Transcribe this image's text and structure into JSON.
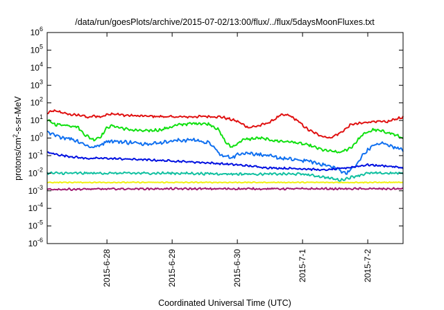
{
  "chart_data": {
    "type": "line",
    "title": "/data/run/goesPlots/archive/2015-07-02/13:00/flux/../flux/5daysMoonFluxes.txt",
    "xlabel": "Coordinated Universal Time (UTC)",
    "ylabel": {
      "base": "protons/cm",
      "sup": "2",
      "rest": "-s-sr-MeV"
    },
    "y_scale": "log",
    "ylim": [
      1e-06,
      1000000.0
    ],
    "y_ticks": [
      {
        "base": "10",
        "exp": "-6",
        "value": -6
      },
      {
        "base": "10",
        "exp": "-5",
        "value": -5
      },
      {
        "base": "10",
        "exp": "-4",
        "value": -4
      },
      {
        "base": "10",
        "exp": "-3",
        "value": -3
      },
      {
        "base": "10",
        "exp": "-2",
        "value": -2
      },
      {
        "base": "10",
        "exp": "-1",
        "value": -1
      },
      {
        "base": "10",
        "exp": "0",
        "value": 0
      },
      {
        "base": "10",
        "exp": "1",
        "value": 1
      },
      {
        "base": "10",
        "exp": "2",
        "value": 2
      },
      {
        "base": "10",
        "exp": "3",
        "value": 3
      },
      {
        "base": "10",
        "exp": "4",
        "value": 4
      },
      {
        "base": "10",
        "exp": "5",
        "value": 5
      },
      {
        "base": "10",
        "exp": "6",
        "value": 6
      }
    ],
    "xlim": [
      "2015-06-27T02:00",
      "2015-07-02T13:00"
    ],
    "x_ticks": [
      {
        "label": "2015-6-28",
        "value": "2015-06-28T00:00"
      },
      {
        "label": "2015-6-29",
        "value": "2015-06-29T00:00"
      },
      {
        "label": "2015-6-30",
        "value": "2015-06-30T00:00"
      },
      {
        "label": "2015-7-1",
        "value": "2015-07-01T00:00"
      },
      {
        "label": "2015-7-2",
        "value": "2015-07-02T00:00"
      }
    ],
    "grid": false,
    "series": [
      {
        "color": "#e01010",
        "noise": 0.05,
        "points": [
          [
            "2015-06-27T02:00",
            25
          ],
          [
            "2015-06-27T04:00",
            35
          ],
          [
            "2015-06-27T07:00",
            30
          ],
          [
            "2015-06-27T10:00",
            22
          ],
          [
            "2015-06-27T13:00",
            20
          ],
          [
            "2015-06-27T15:00",
            20
          ],
          [
            "2015-06-27T17:00",
            14
          ],
          [
            "2015-06-27T19:00",
            18
          ],
          [
            "2015-06-27T22:00",
            16
          ],
          [
            "2015-06-28T00:00",
            22
          ],
          [
            "2015-06-28T02:00",
            25
          ],
          [
            "2015-06-28T06:00",
            20
          ],
          [
            "2015-06-28T12:00",
            18
          ],
          [
            "2015-06-28T18:00",
            17
          ],
          [
            "2015-06-29T00:00",
            16
          ],
          [
            "2015-06-29T06:00",
            16
          ],
          [
            "2015-06-29T12:00",
            17
          ],
          [
            "2015-06-29T18:00",
            16
          ],
          [
            "2015-06-30T00:00",
            9
          ],
          [
            "2015-06-30T04:00",
            4
          ],
          [
            "2015-06-30T08:00",
            5
          ],
          [
            "2015-06-30T12:00",
            8
          ],
          [
            "2015-06-30T16:00",
            20
          ],
          [
            "2015-06-30T19:00",
            20
          ],
          [
            "2015-06-30T22:00",
            10
          ],
          [
            "2015-07-01T02:00",
            3
          ],
          [
            "2015-07-01T06:00",
            1.5
          ],
          [
            "2015-07-01T10:00",
            1
          ],
          [
            "2015-07-01T14:00",
            2
          ],
          [
            "2015-07-01T18:00",
            6
          ],
          [
            "2015-07-01T22:00",
            7
          ],
          [
            "2015-07-02T02:00",
            9
          ],
          [
            "2015-07-02T07:00",
            8
          ],
          [
            "2015-07-02T10:00",
            12
          ],
          [
            "2015-07-02T13:00",
            15
          ]
        ]
      },
      {
        "color": "#10e010",
        "noise": 0.06,
        "points": [
          [
            "2015-06-27T02:00",
            10
          ],
          [
            "2015-06-27T05:00",
            6
          ],
          [
            "2015-06-27T09:00",
            5.5
          ],
          [
            "2015-06-27T13:00",
            4.5
          ],
          [
            "2015-06-27T16:00",
            1.5
          ],
          [
            "2015-06-27T19:00",
            0.8
          ],
          [
            "2015-06-27T22:00",
            1.3
          ],
          [
            "2015-06-28T00:00",
            4
          ],
          [
            "2015-06-28T02:00",
            5
          ],
          [
            "2015-06-28T08:00",
            3
          ],
          [
            "2015-06-28T14:00",
            2.5
          ],
          [
            "2015-06-28T20:00",
            3
          ],
          [
            "2015-06-29T03:00",
            6
          ],
          [
            "2015-06-29T10:00",
            7
          ],
          [
            "2015-06-29T14:00",
            6
          ],
          [
            "2015-06-29T17:00",
            3
          ],
          [
            "2015-06-29T20:00",
            0.5
          ],
          [
            "2015-06-29T22:00",
            0.3
          ],
          [
            "2015-06-30T02:00",
            0.8
          ],
          [
            "2015-06-30T08:00",
            1
          ],
          [
            "2015-06-30T14:00",
            0.7
          ],
          [
            "2015-06-30T20:00",
            0.6
          ],
          [
            "2015-07-01T02:00",
            0.4
          ],
          [
            "2015-07-01T08:00",
            0.2
          ],
          [
            "2015-07-01T14:00",
            0.15
          ],
          [
            "2015-07-01T18:00",
            0.3
          ],
          [
            "2015-07-01T22:00",
            1.5
          ],
          [
            "2015-07-02T02:00",
            3
          ],
          [
            "2015-07-02T08:00",
            2
          ],
          [
            "2015-07-02T13:00",
            1
          ]
        ]
      },
      {
        "color": "#1070f0",
        "noise": 0.08,
        "points": [
          [
            "2015-06-27T02:00",
            2
          ],
          [
            "2015-06-27T06:00",
            1.2
          ],
          [
            "2015-06-27T10:00",
            1
          ],
          [
            "2015-06-27T14:00",
            0.6
          ],
          [
            "2015-06-27T18:00",
            0.3
          ],
          [
            "2015-06-27T21:00",
            0.35
          ],
          [
            "2015-06-28T00:00",
            0.7
          ],
          [
            "2015-06-28T06:00",
            0.6
          ],
          [
            "2015-06-28T12:00",
            0.5
          ],
          [
            "2015-06-28T18:00",
            0.5
          ],
          [
            "2015-06-29T00:00",
            0.7
          ],
          [
            "2015-06-29T08:00",
            0.8
          ],
          [
            "2015-06-29T14:00",
            0.5
          ],
          [
            "2015-06-29T18:00",
            0.1
          ],
          [
            "2015-06-29T22:00",
            0.08
          ],
          [
            "2015-06-30T02:00",
            0.15
          ],
          [
            "2015-06-30T08:00",
            0.12
          ],
          [
            "2015-06-30T14:00",
            0.08
          ],
          [
            "2015-06-30T20:00",
            0.06
          ],
          [
            "2015-07-01T02:00",
            0.05
          ],
          [
            "2015-07-01T08:00",
            0.03
          ],
          [
            "2015-07-01T12:00",
            0.02
          ],
          [
            "2015-07-01T16:00",
            0.01
          ],
          [
            "2015-07-01T20:00",
            0.03
          ],
          [
            "2015-07-01T22:00",
            0.1
          ],
          [
            "2015-07-02T02:00",
            0.4
          ],
          [
            "2015-07-02T06:00",
            0.5
          ],
          [
            "2015-07-02T10:00",
            0.3
          ],
          [
            "2015-07-02T13:00",
            0.2
          ]
        ]
      },
      {
        "color": "#0010e0",
        "noise": 0.04,
        "points": [
          [
            "2015-06-27T02:00",
            0.15
          ],
          [
            "2015-06-27T08:00",
            0.1
          ],
          [
            "2015-06-27T16:00",
            0.07
          ],
          [
            "2015-06-28T00:00",
            0.07
          ],
          [
            "2015-06-28T12:00",
            0.06
          ],
          [
            "2015-06-29T00:00",
            0.05
          ],
          [
            "2015-06-29T12:00",
            0.04
          ],
          [
            "2015-06-30T00:00",
            0.03
          ],
          [
            "2015-06-30T12:00",
            0.02
          ],
          [
            "2015-07-01T00:00",
            0.018
          ],
          [
            "2015-07-01T08:00",
            0.015
          ],
          [
            "2015-07-01T16:00",
            0.02
          ],
          [
            "2015-07-02T00:00",
            0.03
          ],
          [
            "2015-07-02T08:00",
            0.025
          ],
          [
            "2015-07-02T13:00",
            0.02
          ]
        ]
      },
      {
        "color": "#10c0a0",
        "noise": 0.05,
        "points": [
          [
            "2015-06-27T02:00",
            0.01
          ],
          [
            "2015-06-28T00:00",
            0.01
          ],
          [
            "2015-06-29T00:00",
            0.01
          ],
          [
            "2015-06-30T00:00",
            0.009
          ],
          [
            "2015-07-01T00:00",
            0.009
          ],
          [
            "2015-07-01T08:00",
            0.006
          ],
          [
            "2015-07-01T14:00",
            0.004
          ],
          [
            "2015-07-01T18:00",
            0.006
          ],
          [
            "2015-07-02T00:00",
            0.01
          ],
          [
            "2015-07-02T13:00",
            0.01
          ]
        ]
      },
      {
        "color": "#f0f010",
        "noise": 0.02,
        "points": [
          [
            "2015-06-27T02:00",
            0.003
          ],
          [
            "2015-06-28T12:00",
            0.003
          ],
          [
            "2015-06-30T00:00",
            0.003
          ],
          [
            "2015-07-01T12:00",
            0.003
          ],
          [
            "2015-07-02T13:00",
            0.003
          ]
        ]
      },
      {
        "color": "#a01870",
        "noise": 0.04,
        "points": [
          [
            "2015-06-27T02:00",
            0.0012
          ],
          [
            "2015-06-28T12:00",
            0.0013
          ],
          [
            "2015-06-30T00:00",
            0.0013
          ],
          [
            "2015-07-01T12:00",
            0.0013
          ],
          [
            "2015-07-02T13:00",
            0.0013
          ]
        ]
      }
    ]
  }
}
